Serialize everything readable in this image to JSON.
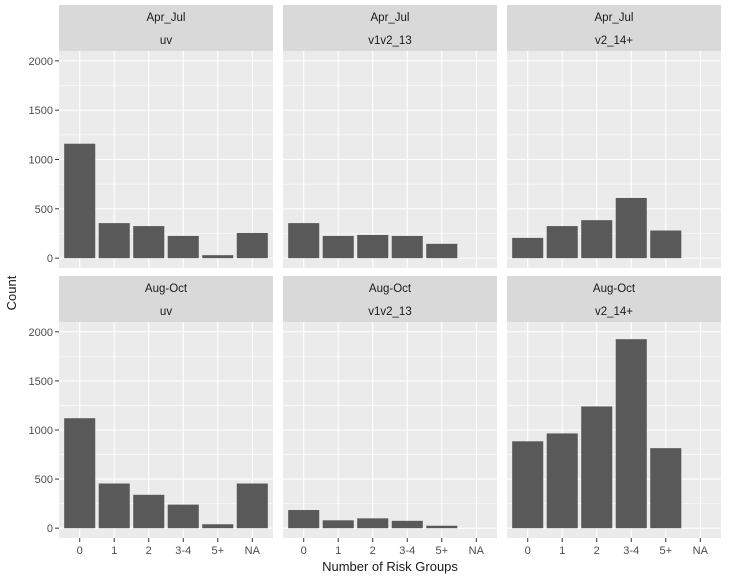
{
  "chart_data": {
    "type": "bar",
    "facet_layout": "2 rows x 3 columns, shared axes",
    "xlabel": "Number of Risk Groups",
    "ylabel": "Count",
    "categories": [
      "0",
      "1",
      "2",
      "3-4",
      "5+",
      "NA"
    ],
    "ylim": [
      0,
      2000
    ],
    "yticks": [
      0,
      500,
      1000,
      1500,
      2000
    ],
    "grid": true,
    "colors": {
      "bar": "#595959",
      "panel_bg": "#ebebeb",
      "strip_bg": "#d9d9d9",
      "grid": "#ffffff",
      "text": "#1a1a1a",
      "tick_text": "#4d4d4d"
    },
    "panels": [
      {
        "row": 0,
        "col": 0,
        "strip": [
          "Apr_Jul",
          "uv"
        ],
        "values": [
          1160,
          355,
          325,
          225,
          30,
          255
        ]
      },
      {
        "row": 0,
        "col": 1,
        "strip": [
          "Apr_Jul",
          "v1v2_13"
        ],
        "values": [
          355,
          225,
          235,
          225,
          145,
          null
        ]
      },
      {
        "row": 0,
        "col": 2,
        "strip": [
          "Apr_Jul",
          "v2_14+"
        ],
        "values": [
          205,
          325,
          385,
          610,
          280,
          null
        ]
      },
      {
        "row": 1,
        "col": 0,
        "strip": [
          "Aug-Oct",
          "uv"
        ],
        "values": [
          1120,
          455,
          340,
          240,
          40,
          455
        ]
      },
      {
        "row": 1,
        "col": 1,
        "strip": [
          "Aug-Oct",
          "v1v2_13"
        ],
        "values": [
          185,
          80,
          100,
          75,
          25,
          null
        ]
      },
      {
        "row": 1,
        "col": 2,
        "strip": [
          "Aug-Oct",
          "v2_14+"
        ],
        "values": [
          885,
          965,
          1240,
          1925,
          815,
          null
        ]
      }
    ]
  }
}
